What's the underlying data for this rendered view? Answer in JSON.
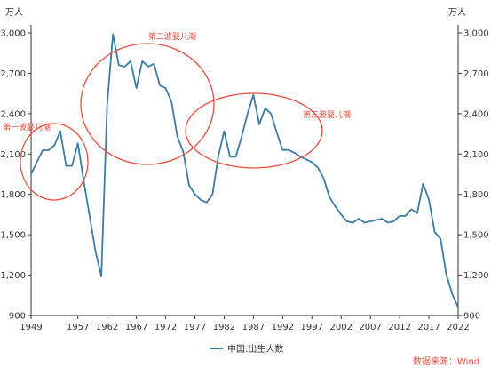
{
  "chart_data": {
    "type": "line",
    "y_unit_left": "万人",
    "y_unit_right": "万人",
    "ylim": [
      900,
      3000
    ],
    "y_ticks": [
      "900",
      "1,200",
      "1,500",
      "1,800",
      "2,100",
      "2,400",
      "2,700",
      "3,000"
    ],
    "y_tick_values": [
      900,
      1200,
      1500,
      1800,
      2100,
      2400,
      2700,
      3000
    ],
    "xlim": [
      1949,
      2022
    ],
    "x_ticks": [
      "1949",
      "1957",
      "1962",
      "1967",
      "1972",
      "1977",
      "1982",
      "1987",
      "1992",
      "1997",
      "2002",
      "2007",
      "2012",
      "2017",
      "2022"
    ],
    "x_tick_values": [
      1949,
      1957,
      1962,
      1967,
      1972,
      1977,
      1982,
      1987,
      1992,
      1997,
      2002,
      2007,
      2012,
      2017,
      2022
    ],
    "series": [
      {
        "name": "中国:出生人数",
        "color": "#3a7ca5",
        "x": [
          1949,
          1950,
          1951,
          1952,
          1953,
          1954,
          1955,
          1956,
          1957,
          1958,
          1959,
          1960,
          1961,
          1962,
          1963,
          1964,
          1965,
          1966,
          1967,
          1968,
          1969,
          1970,
          1971,
          1972,
          1973,
          1974,
          1975,
          1976,
          1977,
          1978,
          1979,
          1980,
          1981,
          1982,
          1983,
          1984,
          1985,
          1986,
          1987,
          1988,
          1989,
          1990,
          1991,
          1992,
          1993,
          1994,
          1995,
          1996,
          1997,
          1998,
          1999,
          2000,
          2001,
          2002,
          2003,
          2004,
          2005,
          2006,
          2007,
          2008,
          2009,
          2010,
          2011,
          2012,
          2013,
          2014,
          2015,
          2016,
          2017,
          2018,
          2019,
          2020,
          2021,
          2022
        ],
        "values": [
          1950,
          2042,
          2128,
          2128,
          2166,
          2270,
          2012,
          2012,
          2180,
          1900,
          1640,
          1380,
          1190,
          2470,
          2990,
          2760,
          2750,
          2790,
          2590,
          2790,
          2750,
          2770,
          2610,
          2590,
          2490,
          2230,
          2120,
          1870,
          1800,
          1760,
          1740,
          1800,
          2080,
          2270,
          2080,
          2080,
          2230,
          2400,
          2540,
          2320,
          2440,
          2400,
          2260,
          2130,
          2130,
          2110,
          2080,
          2060,
          2040,
          2000,
          1920,
          1780,
          1710,
          1650,
          1600,
          1590,
          1620,
          1590,
          1600,
          1610,
          1620,
          1590,
          1600,
          1640,
          1640,
          1690,
          1660,
          1880,
          1760,
          1520,
          1470,
          1200,
          1060,
          960
        ]
      }
    ],
    "annotations": [
      {
        "text": "第一波婴儿潮"
      },
      {
        "text": "第二波婴儿潮"
      },
      {
        "text": "第三波婴儿潮"
      }
    ],
    "legend_position": "bottom-center",
    "grid": false,
    "source": "数据来源：Wind"
  }
}
